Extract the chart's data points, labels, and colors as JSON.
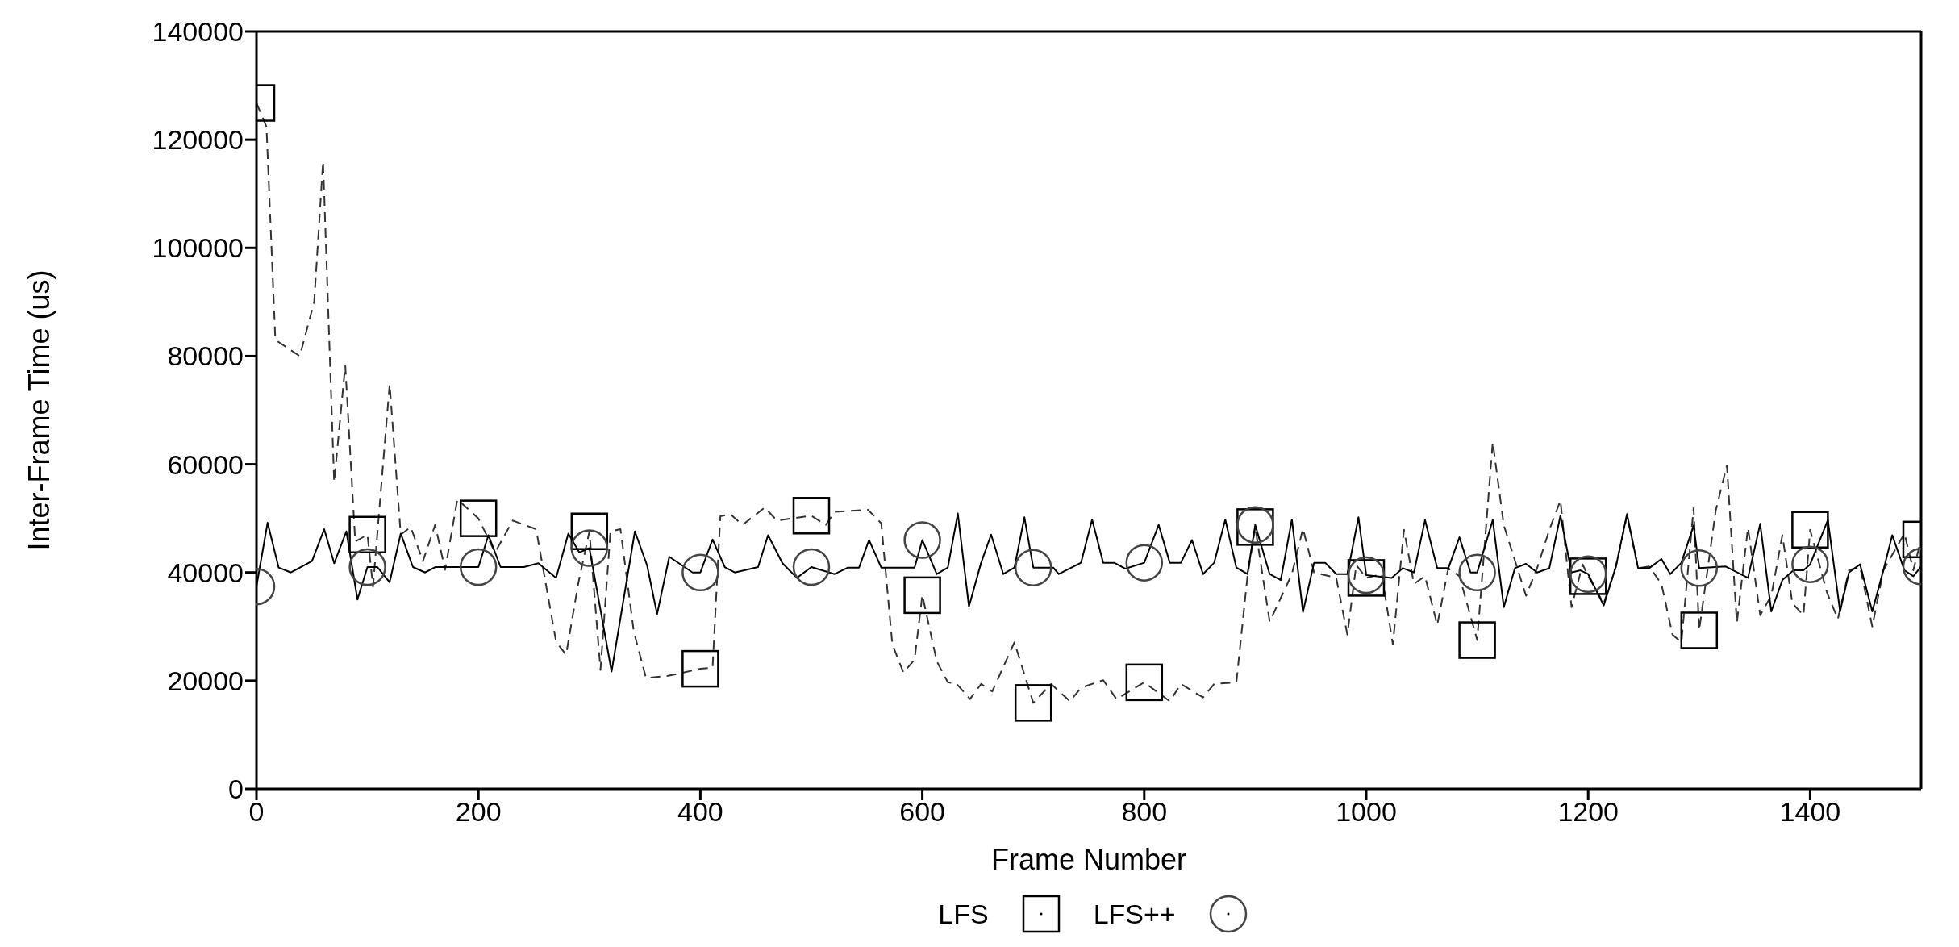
{
  "chart_data": {
    "type": "line",
    "xlabel": "Frame Number",
    "ylabel": "Inter-Frame Time (us)",
    "xlim": [
      0,
      1500
    ],
    "xticks": [
      0,
      200,
      400,
      600,
      800,
      1000,
      1200,
      1400
    ],
    "ylim": [
      0,
      140000
    ],
    "yticks": [
      0,
      20000,
      40000,
      60000,
      80000,
      100000,
      120000,
      140000
    ],
    "legend": "bottom",
    "series": [
      {
        "name": "LFS",
        "type": "scatter",
        "color": "#000000",
        "marker": "square",
        "x": [
          0,
          100,
          200,
          300,
          400,
          500,
          600,
          700,
          800,
          900,
          1000,
          1100,
          1200,
          1300,
          1400,
          1500
        ],
        "values": [
          126800,
          47000,
          50000,
          47600,
          22200,
          50500,
          35800,
          15900,
          19700,
          48400,
          39000,
          27500,
          39300,
          29300,
          47900,
          46100
        ]
      },
      {
        "name": "LFS++",
        "type": "scatter",
        "color": "#444444",
        "marker": "circle",
        "x": [
          0,
          100,
          200,
          300,
          400,
          500,
          600,
          700,
          800,
          900,
          1000,
          1100,
          1200,
          1300,
          1400,
          1500
        ],
        "values": [
          37400,
          41000,
          41000,
          44500,
          40000,
          41000,
          46000,
          40900,
          41800,
          48800,
          39500,
          40000,
          39700,
          40800,
          41500,
          41100
        ]
      },
      {
        "color": "#333333",
        "line_style": "dashed",
        "x": [
          0,
          9,
          17,
          39,
          52,
          60,
          70,
          80,
          89,
          100,
          105,
          120,
          130,
          139,
          150,
          161,
          170,
          181,
          200,
          215,
          231,
          252,
          270,
          279,
          290,
          300,
          310,
          319,
          328,
          340,
          351,
          371,
          400,
          411,
          418,
          427,
          438,
          458,
          469,
          500,
          513,
          521,
          551,
          563,
          573,
          583,
          593,
          600,
          613,
          623,
          631,
          643,
          653,
          663,
          683,
          700,
          716,
          733,
          743,
          763,
          775,
          800,
          823,
          833,
          853,
          863,
          883,
          893,
          900,
          913,
          933,
          943,
          953,
          973,
          983,
          991,
          1000,
          1014,
          1024,
          1034,
          1043,
          1053,
          1064,
          1074,
          1084,
          1100,
          1114,
          1124,
          1144,
          1154,
          1165,
          1175,
          1185,
          1195,
          1200,
          1214,
          1225,
          1235,
          1245,
          1255,
          1266,
          1276,
          1284,
          1295,
          1300,
          1315,
          1325,
          1334,
          1344,
          1355,
          1365,
          1375,
          1384,
          1394,
          1400,
          1415,
          1425,
          1435,
          1445,
          1456,
          1466,
          1485,
          1493,
          1500
        ],
        "values": [
          126800,
          122400,
          83000,
          80000,
          90000,
          116000,
          56700,
          78300,
          45700,
          47000,
          37400,
          74800,
          47000,
          48400,
          42100,
          48800,
          40500,
          53500,
          50000,
          43700,
          49600,
          48000,
          27200,
          24800,
          38000,
          47600,
          22000,
          47600,
          48000,
          29100,
          20500,
          20900,
          22200,
          22400,
          50400,
          50800,
          48800,
          52000,
          49600,
          50500,
          48800,
          51200,
          51600,
          49100,
          26700,
          21500,
          23900,
          35800,
          23600,
          19700,
          19400,
          16600,
          19400,
          18000,
          27100,
          15900,
          19400,
          16200,
          18700,
          20100,
          16600,
          19700,
          16200,
          19400,
          16900,
          19400,
          19700,
          39300,
          48400,
          30900,
          39700,
          48100,
          40000,
          39000,
          28500,
          41400,
          39000,
          39700,
          26700,
          47900,
          37900,
          39300,
          30300,
          40800,
          39300,
          27500,
          64100,
          48700,
          35700,
          40800,
          47900,
          53300,
          33600,
          41500,
          39300,
          34300,
          41100,
          50500,
          40800,
          41100,
          37900,
          28500,
          27100,
          51900,
          29300,
          51500,
          59800,
          30700,
          48300,
          32100,
          35700,
          46900,
          34300,
          32100,
          47900,
          36400,
          31400,
          40400,
          41100,
          30000,
          40400,
          47200,
          40400,
          46100
        ]
      },
      {
        "color": "#000000",
        "line_style": "solid",
        "x": [
          0,
          10,
          20,
          31,
          50,
          61,
          70,
          81,
          91,
          100,
          109,
          120,
          130,
          141,
          152,
          161,
          200,
          209,
          220,
          241,
          254,
          270,
          281,
          291,
          300,
          320,
          341,
          352,
          361,
          372,
          393,
          400,
          411,
          422,
          431,
          452,
          461,
          474,
          487,
          500,
          521,
          533,
          543,
          552,
          563,
          593,
          600,
          613,
          623,
          632,
          642,
          653,
          662,
          673,
          683,
          692,
          700,
          718,
          723,
          743,
          753,
          763,
          773,
          783,
          800,
          813,
          823,
          833,
          843,
          853,
          863,
          873,
          883,
          893,
          900,
          913,
          923,
          933,
          943,
          953,
          963,
          973,
          983,
          993,
          1000,
          1023,
          1033,
          1043,
          1053,
          1064,
          1074,
          1084,
          1094,
          1100,
          1114,
          1124,
          1134,
          1144,
          1154,
          1165,
          1175,
          1185,
          1193,
          1200,
          1214,
          1225,
          1235,
          1245,
          1255,
          1266,
          1274,
          1284,
          1295,
          1300,
          1324,
          1344,
          1355,
          1365,
          1375,
          1385,
          1394,
          1400,
          1416,
          1427,
          1435,
          1445,
          1456,
          1466,
          1474,
          1485,
          1493,
          1500
        ],
        "values": [
          37400,
          49200,
          40900,
          40000,
          42100,
          48000,
          41700,
          47600,
          35000,
          41000,
          41000,
          38200,
          47200,
          41000,
          40000,
          41000,
          41000,
          46900,
          41000,
          41000,
          41700,
          39000,
          47200,
          43700,
          44500,
          21700,
          47600,
          41300,
          32300,
          42900,
          40000,
          40000,
          46100,
          41000,
          40000,
          41000,
          46900,
          41700,
          39000,
          41000,
          39700,
          40900,
          40900,
          46000,
          40900,
          40900,
          46000,
          39700,
          40900,
          50900,
          33700,
          41800,
          47000,
          39700,
          40900,
          50200,
          40900,
          40900,
          39700,
          41800,
          49800,
          41800,
          41800,
          40700,
          41800,
          48800,
          41800,
          41800,
          46000,
          39700,
          41800,
          49800,
          40900,
          39700,
          48800,
          39700,
          38600,
          49800,
          32700,
          41800,
          41800,
          39700,
          39700,
          50200,
          39500,
          39000,
          40800,
          40000,
          49700,
          40800,
          40800,
          46500,
          40000,
          40000,
          49700,
          33600,
          40800,
          41600,
          40000,
          40800,
          50500,
          40000,
          40400,
          39700,
          33900,
          41100,
          50800,
          40800,
          40800,
          42500,
          39700,
          41800,
          48700,
          40800,
          41100,
          39000,
          49000,
          32800,
          38600,
          40400,
          40400,
          41500,
          49700,
          32800,
          40000,
          41500,
          32800,
          40400,
          46900,
          40400,
          39300,
          41100
        ]
      }
    ]
  }
}
